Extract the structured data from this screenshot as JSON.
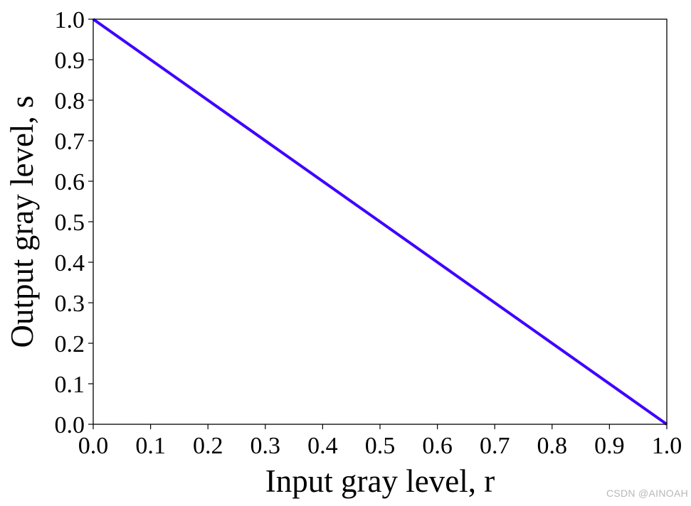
{
  "chart_data": {
    "type": "line",
    "title": "",
    "xlabel": "Input gray level, r",
    "ylabel": "Output gray level, s",
    "xlim": [
      0.0,
      1.0
    ],
    "ylim": [
      0.0,
      1.0
    ],
    "xticks": [
      "0.0",
      "0.1",
      "0.2",
      "0.3",
      "0.4",
      "0.5",
      "0.6",
      "0.7",
      "0.8",
      "0.9",
      "1.0"
    ],
    "yticks": [
      "0.0",
      "0.1",
      "0.2",
      "0.3",
      "0.4",
      "0.5",
      "0.6",
      "0.7",
      "0.8",
      "0.9",
      "1.0"
    ],
    "grid": false,
    "legend": "none",
    "series": [
      {
        "x": [
          0.0,
          1.0
        ],
        "y": [
          1.0,
          0.0
        ],
        "color": "#3f00ff"
      }
    ]
  },
  "watermark": "CSDN @AINOAH"
}
